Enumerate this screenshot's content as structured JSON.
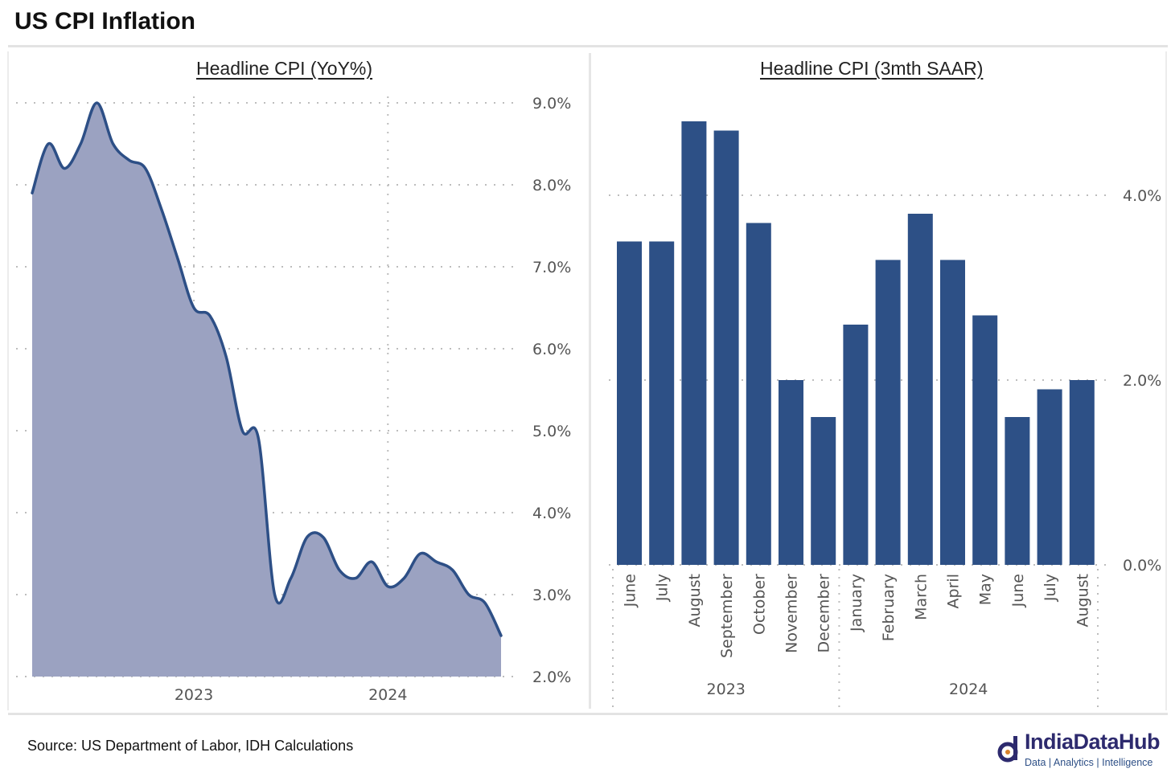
{
  "page": {
    "title": "US CPI Inflation",
    "source": "Source: US Department of Labor, IDH Calculations"
  },
  "logo": {
    "name": "IndiaDataHub",
    "tagline": "Data | Analytics | Intelligence",
    "icon": "india-data-hub-logo-icon"
  },
  "colors": {
    "line": "#2d4f86",
    "area_fill": "#9ba2c1",
    "bar": "#2d5086",
    "grid": "#bdbdbd",
    "logo": "#2d2a6e"
  },
  "chart_data": [
    {
      "type": "area",
      "title": "Headline CPI (YoY%)",
      "xlabel": "",
      "ylabel": "",
      "x": [
        "2022-03",
        "2022-04",
        "2022-05",
        "2022-06",
        "2022-07",
        "2022-08",
        "2022-09",
        "2022-10",
        "2022-11",
        "2022-12",
        "2023-01",
        "2023-02",
        "2023-03",
        "2023-04",
        "2023-05",
        "2023-06",
        "2023-07",
        "2023-08",
        "2023-09",
        "2023-10",
        "2023-11",
        "2023-12",
        "2024-01",
        "2024-02",
        "2024-03",
        "2024-04",
        "2024-05",
        "2024-06",
        "2024-07",
        "2024-08"
      ],
      "values": [
        7.9,
        8.5,
        8.2,
        8.5,
        9.0,
        8.5,
        8.3,
        8.2,
        7.7,
        7.1,
        6.5,
        6.4,
        5.9,
        5.0,
        4.9,
        3.0,
        3.2,
        3.7,
        3.7,
        3.3,
        3.2,
        3.4,
        3.1,
        3.2,
        3.5,
        3.4,
        3.3,
        3.0,
        2.9,
        2.5
      ],
      "x_ticks": [
        "2023",
        "2024"
      ],
      "y_ticks": [
        "9.0%",
        "8.0%",
        "7.0%",
        "6.0%",
        "5.0%",
        "4.0%",
        "3.0%",
        "2.0%"
      ],
      "ylim": [
        2.0,
        9.0
      ],
      "y_axis_side": "right",
      "grid": "dotted"
    },
    {
      "type": "bar",
      "title": "Headline CPI (3mth SAAR)",
      "xlabel": "",
      "ylabel": "",
      "categories": [
        "June",
        "July",
        "August",
        "September",
        "October",
        "November",
        "December",
        "January",
        "February",
        "March",
        "April",
        "May",
        "June",
        "July",
        "August"
      ],
      "groups": [
        {
          "label": "2023",
          "count": 7
        },
        {
          "label": "2024",
          "count": 8
        }
      ],
      "values": [
        3.5,
        3.5,
        4.8,
        4.7,
        3.7,
        2.0,
        1.6,
        2.6,
        3.3,
        3.8,
        3.3,
        2.7,
        1.6,
        1.9,
        2.0
      ],
      "y_ticks": [
        "4.0%",
        "2.0%",
        "0.0%"
      ],
      "ylim": [
        0.0,
        5.0
      ],
      "y_axis_side": "right",
      "grid": "dotted"
    }
  ]
}
